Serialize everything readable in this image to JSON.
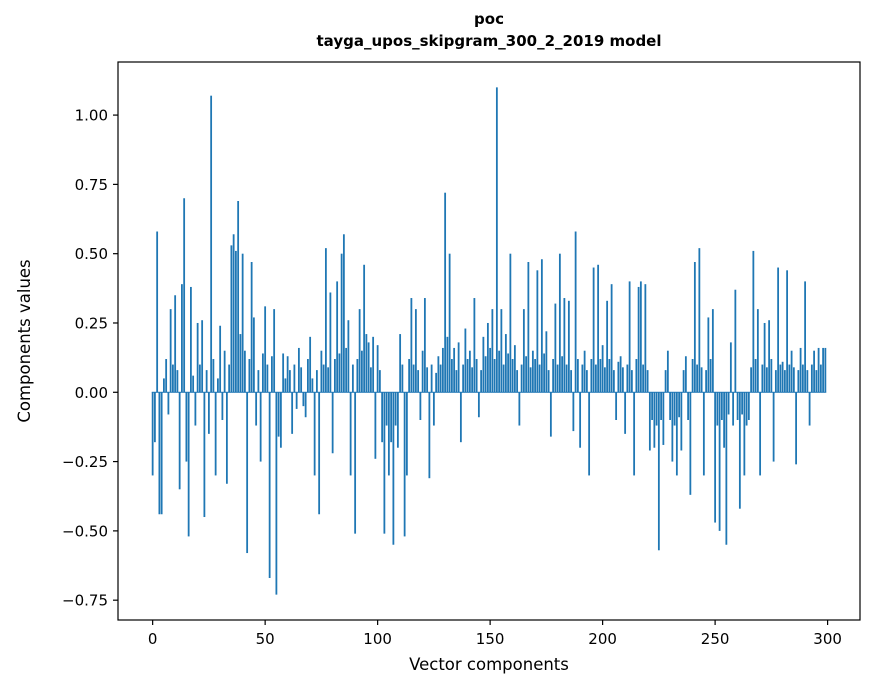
{
  "figure": {
    "title_line1": "poc",
    "title_line2": "tayga_upos_skipgram_300_2_2019 model"
  },
  "chart_data": {
    "type": "bar",
    "title": "poc\ntayga_upos_skipgram_300_2_2019 model",
    "xlabel": "Vector components",
    "ylabel": "Components values",
    "bar_color": "#1f77b4",
    "axis_color": "#000000",
    "background": "#ffffff",
    "legend": "off",
    "grid": "off",
    "xlim": [
      -15.4,
      314.4
    ],
    "ylim": [
      -0.8215,
      1.1915
    ],
    "xticks": [
      0,
      50,
      100,
      150,
      200,
      250,
      300
    ],
    "yticks": [
      -0.75,
      -0.5,
      -0.25,
      0.0,
      0.25,
      0.5,
      0.75,
      1.0
    ],
    "n": 300,
    "values": [
      -0.3,
      -0.18,
      0.58,
      -0.44,
      -0.44,
      0.05,
      0.12,
      -0.08,
      0.3,
      0.1,
      0.35,
      0.08,
      -0.35,
      0.39,
      0.7,
      -0.25,
      -0.52,
      0.38,
      0.06,
      -0.12,
      0.25,
      0.1,
      0.26,
      -0.45,
      0.08,
      -0.15,
      1.07,
      0.12,
      -0.3,
      0.05,
      0.24,
      -0.1,
      0.15,
      -0.33,
      0.1,
      0.53,
      0.57,
      0.51,
      0.69,
      0.21,
      0.5,
      0.15,
      -0.58,
      0.12,
      0.47,
      0.27,
      -0.12,
      0.08,
      -0.25,
      0.14,
      0.31,
      0.1,
      -0.67,
      0.13,
      0.3,
      -0.73,
      -0.16,
      -0.2,
      0.14,
      0.05,
      0.13,
      0.08,
      -0.15,
      0.1,
      -0.06,
      0.16,
      0.09,
      -0.05,
      -0.09,
      0.12,
      0.2,
      0.05,
      -0.3,
      0.08,
      -0.44,
      0.15,
      0.1,
      0.52,
      0.09,
      0.36,
      -0.22,
      0.12,
      0.4,
      0.14,
      0.5,
      0.57,
      0.16,
      0.26,
      -0.3,
      0.1,
      -0.51,
      0.12,
      0.3,
      0.15,
      0.46,
      0.21,
      0.18,
      0.09,
      0.2,
      -0.24,
      0.17,
      0.08,
      -0.18,
      -0.51,
      -0.12,
      -0.3,
      -0.18,
      -0.55,
      -0.12,
      -0.2,
      0.21,
      0.1,
      -0.52,
      -0.3,
      0.12,
      0.34,
      0.1,
      0.3,
      0.08,
      -0.1,
      0.15,
      0.34,
      0.09,
      -0.31,
      0.1,
      -0.12,
      0.07,
      0.13,
      0.1,
      0.16,
      0.72,
      0.2,
      0.5,
      0.12,
      0.16,
      0.08,
      0.18,
      -0.18,
      0.1,
      0.23,
      0.12,
      0.15,
      0.09,
      0.34,
      0.12,
      -0.09,
      0.08,
      0.2,
      0.13,
      0.25,
      0.16,
      0.3,
      0.12,
      1.1,
      0.15,
      0.3,
      0.1,
      0.21,
      0.14,
      0.5,
      0.12,
      0.17,
      0.08,
      -0.12,
      0.1,
      0.3,
      0.13,
      0.47,
      0.09,
      0.15,
      0.12,
      0.44,
      0.1,
      0.48,
      0.14,
      0.22,
      0.08,
      -0.16,
      0.12,
      0.32,
      0.1,
      0.5,
      0.13,
      0.34,
      0.1,
      0.33,
      0.08,
      -0.14,
      0.58,
      0.12,
      -0.2,
      0.1,
      0.15,
      0.08,
      -0.3,
      0.12,
      0.45,
      0.1,
      0.46,
      0.12,
      0.17,
      0.09,
      0.33,
      0.12,
      0.39,
      0.08,
      -0.1,
      0.11,
      0.13,
      0.09,
      -0.15,
      0.1,
      0.4,
      0.08,
      -0.3,
      0.12,
      0.38,
      0.4,
      0.1,
      0.39,
      0.08,
      -0.21,
      -0.1,
      -0.2,
      -0.12,
      -0.57,
      -0.1,
      -0.19,
      0.08,
      0.15,
      -0.1,
      -0.25,
      -0.12,
      -0.3,
      -0.09,
      -0.21,
      0.08,
      0.13,
      -0.1,
      -0.37,
      0.12,
      0.47,
      0.1,
      0.52,
      0.09,
      -0.3,
      0.08,
      0.27,
      0.12,
      0.3,
      -0.47,
      -0.12,
      -0.5,
      -0.1,
      -0.2,
      -0.55,
      -0.08,
      0.18,
      -0.12,
      0.37,
      -0.1,
      -0.42,
      -0.08,
      -0.3,
      -0.12,
      -0.1,
      0.09,
      0.51,
      0.12,
      0.3,
      -0.3,
      0.1,
      0.25,
      0.09,
      0.26,
      0.12,
      -0.25,
      0.08,
      0.45,
      0.1,
      0.11,
      0.08,
      0.44,
      0.1,
      0.15,
      0.09,
      -0.26,
      0.08,
      0.16,
      0.1,
      0.4,
      0.08,
      -0.12,
      0.1,
      0.15,
      0.08,
      0.16,
      0.1,
      0.16,
      0.16
    ]
  }
}
